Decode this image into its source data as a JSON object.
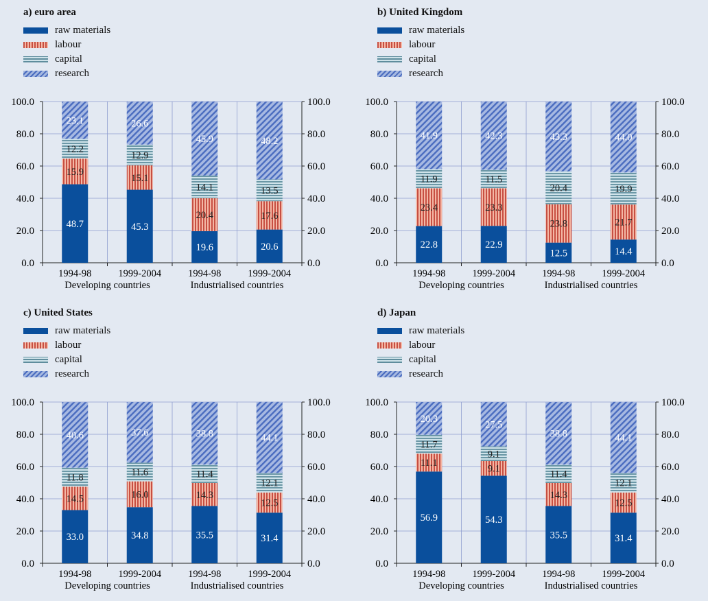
{
  "legend": {
    "raw": "raw materials",
    "labour": "labour",
    "capital": "capital",
    "research": "research"
  },
  "colors": {
    "background": "#e3e9f2",
    "raw_materials": "#0a4f9c",
    "labour": "#c74f42",
    "capital": "#5f8d9d",
    "research": "#4a6cbf"
  },
  "chart_data": [
    {
      "type": "bar",
      "stacked": true,
      "title": "a) euro area",
      "categories": [
        "1994-98",
        "1999-2004",
        "1994-98",
        "1999-2004"
      ],
      "groups": [
        "Developing countries",
        "Industrialised countries"
      ],
      "yticks": [
        "0.0",
        "20.0",
        "40.0",
        "60.0",
        "80.0",
        "100.0"
      ],
      "ylim": [
        0,
        100
      ],
      "series": [
        {
          "name": "raw materials",
          "values": [
            48.7,
            45.3,
            19.6,
            20.6
          ]
        },
        {
          "name": "labour",
          "values": [
            15.9,
            15.1,
            20.4,
            17.6
          ]
        },
        {
          "name": "capital",
          "values": [
            12.2,
            12.9,
            14.1,
            13.5
          ]
        },
        {
          "name": "research",
          "values": [
            23.1,
            26.6,
            45.9,
            48.2
          ]
        }
      ]
    },
    {
      "type": "bar",
      "stacked": true,
      "title": "b) United Kingdom",
      "categories": [
        "1994-98",
        "1999-2004",
        "1994-98",
        "1999-2004"
      ],
      "groups": [
        "Developing countries",
        "Industrialised countries"
      ],
      "yticks": [
        "0.0",
        "20.0",
        "40.0",
        "60.0",
        "80.0",
        "100.0"
      ],
      "ylim": [
        0,
        100
      ],
      "series": [
        {
          "name": "raw materials",
          "values": [
            22.8,
            22.9,
            12.5,
            14.4
          ]
        },
        {
          "name": "labour",
          "values": [
            23.4,
            23.3,
            23.8,
            21.7
          ]
        },
        {
          "name": "capital",
          "values": [
            11.9,
            11.5,
            20.4,
            19.9
          ]
        },
        {
          "name": "research",
          "values": [
            41.9,
            42.3,
            43.3,
            44.0
          ]
        }
      ]
    },
    {
      "type": "bar",
      "stacked": true,
      "title": "c) United States",
      "categories": [
        "1994-98",
        "1999-2004",
        "1994-98",
        "1999-2004"
      ],
      "groups": [
        "Developing countries",
        "Industrialised countries"
      ],
      "yticks": [
        "0.0",
        "20.0",
        "40.0",
        "60.0",
        "80.0",
        "100.0"
      ],
      "ylim": [
        0,
        100
      ],
      "series": [
        {
          "name": "raw materials",
          "values": [
            33.0,
            34.8,
            35.5,
            31.4
          ]
        },
        {
          "name": "labour",
          "values": [
            14.5,
            16.0,
            14.3,
            12.5
          ]
        },
        {
          "name": "capital",
          "values": [
            11.8,
            11.6,
            11.4,
            12.1
          ]
        },
        {
          "name": "research",
          "values": [
            40.6,
            37.6,
            38.8,
            44.1
          ]
        }
      ]
    },
    {
      "type": "bar",
      "stacked": true,
      "title": "d) Japan",
      "categories": [
        "1994-98",
        "1999-2004",
        "1994-98",
        "1999-2004"
      ],
      "groups": [
        "Developing countries",
        "Industrialised countries"
      ],
      "yticks": [
        "0.0",
        "20.0",
        "40.0",
        "60.0",
        "80.0",
        "100.0"
      ],
      "ylim": [
        0,
        100
      ],
      "series": [
        {
          "name": "raw materials",
          "values": [
            56.9,
            54.3,
            35.5,
            31.4
          ]
        },
        {
          "name": "labour",
          "values": [
            11.1,
            9.1,
            14.3,
            12.5
          ]
        },
        {
          "name": "capital",
          "values": [
            11.7,
            9.1,
            11.4,
            12.1
          ]
        },
        {
          "name": "research",
          "values": [
            20.3,
            27.5,
            38.8,
            44.1
          ]
        }
      ]
    }
  ]
}
